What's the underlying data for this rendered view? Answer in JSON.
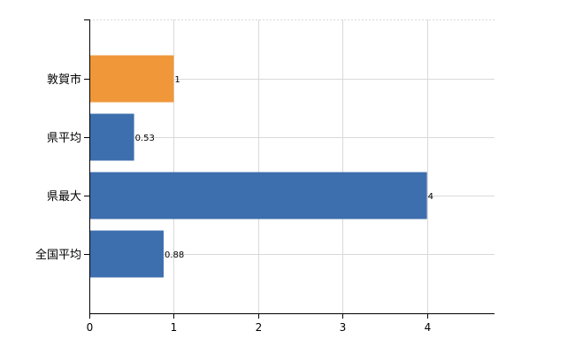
{
  "chart_data": {
    "type": "bar",
    "orientation": "horizontal",
    "categories": [
      "敦賀市",
      "県平均",
      "県最大",
      "全国平均"
    ],
    "values": [
      1,
      0.53,
      4,
      0.88
    ],
    "value_labels": [
      "1",
      "0.53",
      "4",
      "0.88"
    ],
    "colors": [
      "#f0973a",
      "#3d6ead",
      "#3d6ead",
      "#3d6ead"
    ],
    "xlim": [
      0,
      4.8
    ],
    "xticks": [
      0,
      1,
      2,
      3,
      4
    ],
    "grid": true,
    "title": "",
    "xlabel": "",
    "ylabel": ""
  }
}
